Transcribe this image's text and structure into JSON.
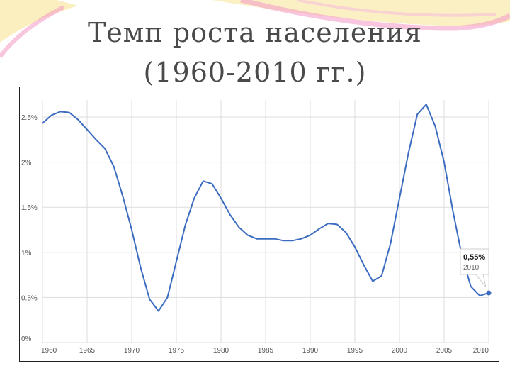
{
  "slide": {
    "title_line1": "Темп роста населения",
    "title_line2": "(1960-2010 гг.)"
  },
  "colors": {
    "line": "#3b6cc0",
    "grid": "#dddddd",
    "title": "#4a4a4a",
    "decor_pink": "#f4a0c8",
    "decor_yellow": "#f8e08a"
  },
  "chart_data": {
    "type": "line",
    "title": "",
    "xlabel": "",
    "ylabel": "",
    "x_ticks": [
      "1960",
      "1965",
      "1970",
      "1975",
      "1980",
      "1985",
      "1990",
      "1995",
      "2000",
      "2005",
      "2010"
    ],
    "y_ticks": [
      "0%",
      "0.5%",
      "1%",
      "1.5%",
      "2%",
      "2.5%"
    ],
    "xlim": [
      1960,
      2010
    ],
    "ylim": [
      0,
      2.5
    ],
    "grid": true,
    "series": [
      {
        "x": [
          1960,
          1961,
          1962,
          1963,
          1964,
          1965,
          1966,
          1967,
          1968,
          1969,
          1970,
          1971,
          1972,
          1973,
          1974,
          1975,
          1976,
          1977,
          1978,
          1979,
          1980,
          1981,
          1982,
          1983,
          1984,
          1985,
          1986,
          1987,
          1988,
          1989,
          1990,
          1991,
          1992,
          1993,
          1994,
          1995,
          1996,
          1997,
          1998,
          1999,
          2000,
          2001,
          2002,
          2003,
          2004,
          2005,
          2006,
          2007,
          2008,
          2009,
          2010
        ],
        "values": [
          2.43,
          2.52,
          2.56,
          2.55,
          2.47,
          2.36,
          2.25,
          2.15,
          1.95,
          1.62,
          1.25,
          0.83,
          0.48,
          0.35,
          0.5,
          0.9,
          1.3,
          1.6,
          1.79,
          1.76,
          1.6,
          1.42,
          1.28,
          1.19,
          1.15,
          1.15,
          1.15,
          1.13,
          1.13,
          1.15,
          1.19,
          1.26,
          1.32,
          1.31,
          1.22,
          1.06,
          0.86,
          0.68,
          0.74,
          1.1,
          1.6,
          2.1,
          2.53,
          2.64,
          2.4,
          2.0,
          1.45,
          0.96,
          0.62,
          0.52,
          0.55
        ]
      }
    ],
    "annotation": {
      "value_label": "0,55%",
      "year_label": "2010",
      "x": 2010,
      "y": 0.55
    }
  }
}
